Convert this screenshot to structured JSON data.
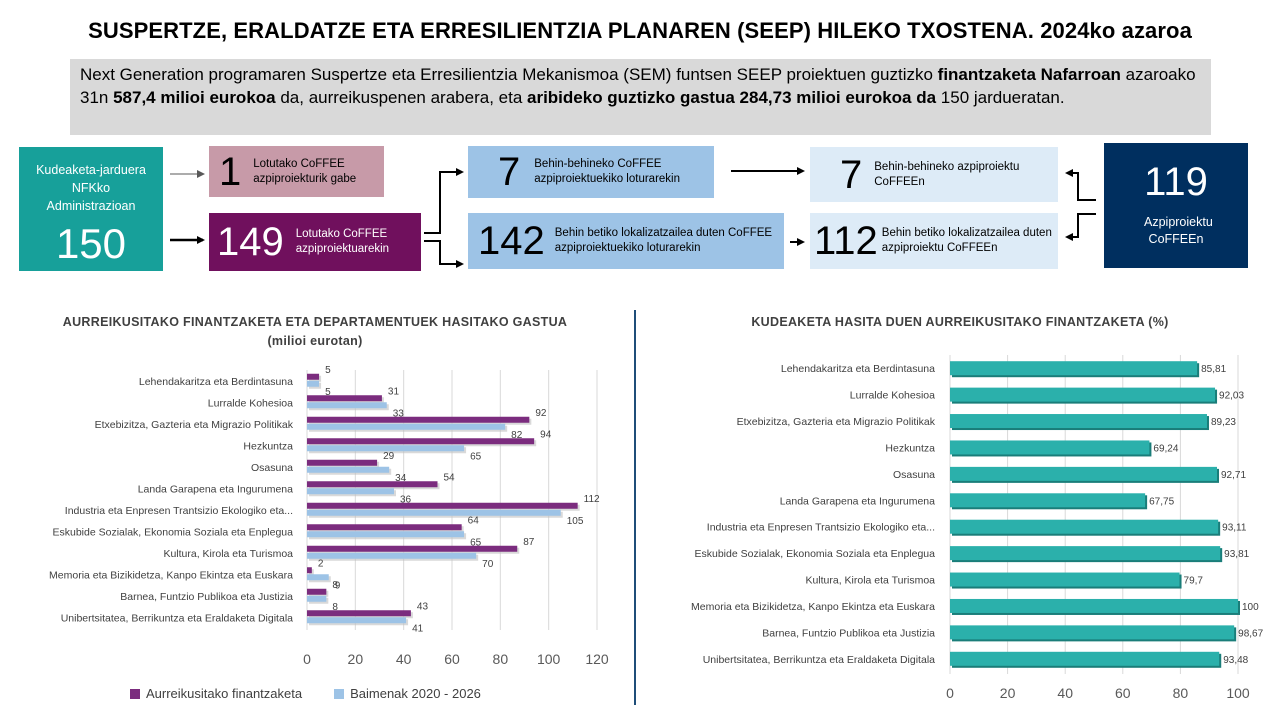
{
  "header": {
    "title": "SUSPERTZE, ERALDATZE ETA ERRESILIENTZIA PLANAREN (SEEP) HILEKO TXOSTENA. 2024ko azaroa"
  },
  "intro": {
    "t1": "Next Generation programaren Suspertze eta Erresilientzia Mekanismoa (SEM) funtsen SEEP proiektuen guztizko ",
    "b1": "finantzaketa Nafarroan",
    "t2": " azaroako 31n ",
    "b2": "587,4 milioi eurokoa",
    "t3": " da, aurreikuspenen arabera, eta ",
    "b3": "aribideko guztizko gastua 284,73 milioi eurokoa da",
    "t4": " 150 jardueratan."
  },
  "flow": {
    "admin_box": {
      "label": "Kudeaketa-jarduera NFKko Administrazioan",
      "number": "150"
    },
    "no_link_box": {
      "number": "1",
      "label": "Lotutako CoFFEE azpiproiekturik gabe"
    },
    "linked_box": {
      "number": "149",
      "label": "Lotutako CoFFEE azpiproiektuarekin"
    },
    "provisional_box": {
      "number": "7",
      "label": "Behin-behineko CoFFEE azpiproiektuekiko loturarekin"
    },
    "definitive_box": {
      "number": "142",
      "label": "Behin betiko lokalizatzailea duten CoFFEE azpiproiektuekiko loturarekin"
    },
    "provisional_sub_box": {
      "number": "7",
      "label": "Behin-behineko azpiproiektu CoFFEEn"
    },
    "definitive_sub_box": {
      "number": "112",
      "label": "Behin betiko lokalizatzailea duten azpiproiektu CoFFEEn"
    },
    "total_box": {
      "number": "119",
      "label": "Azpiproiektu CoFFEEn"
    }
  },
  "colors": {
    "teal": "#17a09a",
    "mauve": "#c79aa8",
    "purple": "#70105d",
    "light_blue": "#9dc3e6",
    "pale_blue": "#ddebf7",
    "navy": "#002f5f",
    "series_financing": "#7b2c7e",
    "series_permits": "#9dc3e6",
    "bar_teal": "#2bb0ab"
  },
  "chart_data": [
    {
      "type": "bar",
      "orientation": "horizontal",
      "title": "AURREIKUSITAKO FINANTZAKETA ETA DEPARTAMENTUEK HASITAKO GASTUA (milioi eurotan)",
      "categories": [
        "Lehendakaritza eta Berdintasuna",
        "Lurralde Kohesioa",
        "Etxebizitza, Gazteria eta Migrazio Politikak",
        "Hezkuntza",
        "Osasuna",
        "Landa Garapena eta Ingurumena",
        "Industria eta Enpresen Trantsizio Ekologiko eta...",
        "Eskubide Sozialak, Ekonomia Soziala eta Enplegua",
        "Kultura, Kirola eta Turismoa",
        "Memoria eta Bizikidetza, Kanpo Ekintza eta Euskara",
        "Barnea, Funtzio Publikoa eta Justizia",
        "Unibertsitatea, Berrikuntza eta Eraldaketa Digitala"
      ],
      "series": [
        {
          "name": "Aurreikusitako finantzaketa",
          "values": [
            5,
            31,
            92,
            94,
            29,
            54,
            112,
            64,
            87,
            2,
            8,
            43
          ]
        },
        {
          "name": "Baimenak 2020 - 2026",
          "values": [
            5,
            33,
            82,
            65,
            34,
            36,
            105,
            65,
            70,
            9,
            8,
            41
          ]
        }
      ],
      "xlim": [
        0,
        120
      ],
      "xticks": [
        "0",
        "20",
        "40",
        "60",
        "80",
        "100",
        "120"
      ],
      "grid": true,
      "legend": "bottom"
    },
    {
      "type": "bar",
      "orientation": "horizontal",
      "title": "KUDEAKETA HASITA DUEN AURREIKUSITAKO FINANTZAKETA (%)",
      "categories": [
        "Lehendakaritza eta Berdintasuna",
        "Lurralde Kohesioa",
        "Etxebizitza, Gazteria eta Migrazio Politikak",
        "Hezkuntza",
        "Osasuna",
        "Landa Garapena eta Ingurumena",
        "Industria eta Enpresen Trantsizio Ekologiko eta...",
        "Eskubide Sozialak, Ekonomia Soziala eta Enplegua",
        "Kultura, Kirola eta Turismoa",
        "Memoria eta Bizikidetza, Kanpo Ekintza eta Euskara",
        "Barnea, Funtzio Publikoa eta Justizia",
        "Unibertsitatea, Berrikuntza eta Eraldaketa Digitala"
      ],
      "values": [
        85.81,
        92.03,
        89.23,
        69.24,
        92.71,
        67.75,
        93.11,
        93.81,
        79.7,
        100,
        98.67,
        93.48
      ],
      "labels": [
        "85,81",
        "92,03",
        "89,23",
        "69,24",
        "92,71",
        "67,75",
        "93,11",
        "93,81",
        "79,7",
        "100",
        "98,67",
        "93,48"
      ],
      "xlim": [
        0,
        100
      ],
      "xticks": [
        "0",
        "20",
        "40",
        "60",
        "80",
        "100"
      ],
      "grid": true
    }
  ]
}
